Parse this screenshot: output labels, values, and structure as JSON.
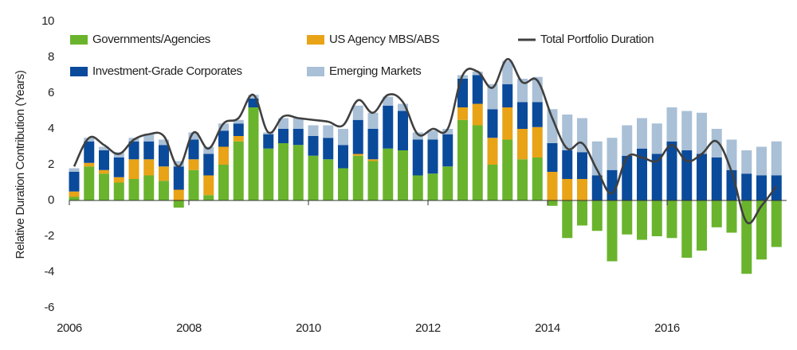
{
  "chart_data": {
    "type": "bar",
    "stacked": true,
    "y_label": "Relative Duration Contribution (Years)",
    "x": [
      2006.08,
      2006.33,
      2006.58,
      2006.83,
      2007.08,
      2007.33,
      2007.58,
      2007.83,
      2008.08,
      2008.33,
      2008.58,
      2008.83,
      2009.08,
      2009.33,
      2009.58,
      2009.83,
      2010.08,
      2010.33,
      2010.58,
      2010.83,
      2011.08,
      2011.33,
      2011.58,
      2011.83,
      2012.08,
      2012.33,
      2012.58,
      2012.83,
      2013.08,
      2013.33,
      2013.58,
      2013.83,
      2014.08,
      2014.33,
      2014.58,
      2014.83,
      2015.08,
      2015.33,
      2015.58,
      2015.83,
      2016.08,
      2016.33,
      2016.58,
      2016.83,
      2017.08,
      2017.33,
      2017.58,
      2017.83
    ],
    "series": [
      {
        "name": "Governments/Agencies",
        "color": "#6ab42d",
        "values": [
          0.2,
          1.9,
          1.5,
          1.0,
          1.2,
          1.4,
          1.1,
          -0.4,
          1.7,
          0.3,
          2.0,
          3.3,
          5.2,
          2.9,
          3.2,
          3.1,
          2.5,
          2.3,
          1.8,
          2.5,
          2.2,
          2.9,
          2.8,
          1.4,
          1.5,
          1.9,
          4.5,
          4.2,
          2.0,
          3.4,
          2.3,
          2.4,
          -0.3,
          -2.1,
          -1.4,
          -1.7,
          -3.4,
          -1.9,
          -2.2,
          -2.0,
          -2.1,
          -3.2,
          -2.8,
          -1.5,
          -1.8,
          -4.1,
          -3.3,
          -2.6
        ]
      },
      {
        "name": "US Agency MBS/ABS",
        "color": "#e8a317",
        "values": [
          0.3,
          0.2,
          0.2,
          0.3,
          1.1,
          0.9,
          0.8,
          0.6,
          0.6,
          1.1,
          1.0,
          0.3,
          0,
          0,
          0,
          0,
          0,
          0,
          0,
          0.1,
          0.1,
          0,
          0,
          0,
          0,
          0,
          0.7,
          1.2,
          1.5,
          1.8,
          1.7,
          1.7,
          1.6,
          1.2,
          1.2,
          0,
          0,
          0,
          0,
          0,
          0,
          0,
          0,
          0,
          0,
          0,
          0,
          0
        ]
      },
      {
        "name": "Investment-Grade Corporates",
        "color": "#0a4a9b",
        "values": [
          1.1,
          1.2,
          1.1,
          1.1,
          1.0,
          1.0,
          1.2,
          1.3,
          1.1,
          1.2,
          0.9,
          0.7,
          0.5,
          0.8,
          0.8,
          0.9,
          1.1,
          1.2,
          1.3,
          1.9,
          1.7,
          2.4,
          2.2,
          2.0,
          1.9,
          1.8,
          1.6,
          1.6,
          1.6,
          1.3,
          1.5,
          1.4,
          1.6,
          1.6,
          1.5,
          1.4,
          1.7,
          2.5,
          2.9,
          2.6,
          3.3,
          2.8,
          2.6,
          2.4,
          1.7,
          1.5,
          1.4,
          1.4
        ]
      },
      {
        "name": "Emerging Markets",
        "color": "#a9c0d6",
        "values": [
          0.2,
          0.2,
          0.2,
          0.3,
          0.2,
          0.4,
          0.3,
          0.3,
          0.4,
          0.4,
          0.4,
          0.2,
          0.2,
          0.1,
          0.6,
          0.6,
          0.6,
          0.7,
          0.9,
          0.8,
          0.9,
          0.5,
          0.4,
          0.4,
          0.5,
          0.3,
          0.2,
          0.2,
          1.4,
          1.3,
          1.3,
          1.4,
          1.9,
          2.0,
          1.9,
          1.9,
          1.8,
          1.7,
          1.7,
          1.7,
          1.9,
          2.2,
          2.3,
          1.6,
          1.7,
          1.3,
          1.6,
          1.9
        ]
      },
      {
        "name": "Total Portfolio Duration",
        "type": "line",
        "color": "#404040",
        "values": [
          1.9,
          3.5,
          3.1,
          2.6,
          3.4,
          3.7,
          3.6,
          1.9,
          3.8,
          2.9,
          4.3,
          4.6,
          5.9,
          3.8,
          4.7,
          4.6,
          4.5,
          4.4,
          4.2,
          5.6,
          4.9,
          5.9,
          5.5,
          3.7,
          4.0,
          4.0,
          7.0,
          7.2,
          6.3,
          7.9,
          6.6,
          6.7,
          4.6,
          2.9,
          3.2,
          1.7,
          0.4,
          2.4,
          2.4,
          2.2,
          3.1,
          2.2,
          2.6,
          3.3,
          1.6,
          -1.2,
          -0.3,
          0.8
        ]
      }
    ],
    "xlim": [
      2006,
      2018
    ],
    "xticks": [
      2006,
      2008,
      2010,
      2012,
      2014,
      2016
    ],
    "ylim": [
      -6,
      10
    ],
    "yticks": [
      -6,
      -4,
      -2,
      0,
      2,
      4,
      6,
      8,
      10
    ],
    "grid": false
  }
}
